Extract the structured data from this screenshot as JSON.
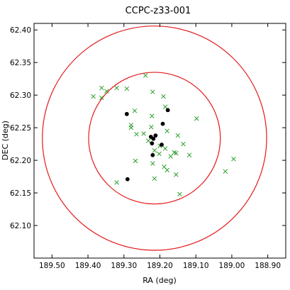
{
  "chart_data": {
    "type": "scatter",
    "title": "CCPC-z33-001",
    "xlabel": "RA (deg)",
    "ylabel": "DEC (deg)",
    "xlim": [
      189.55,
      188.85
    ],
    "ylim": [
      62.05,
      62.41
    ],
    "x_ticks": [
      "189.50",
      "189.40",
      "189.30",
      "189.20",
      "189.10",
      "189.00",
      "188.90"
    ],
    "y_ticks": [
      "62.10",
      "62.15",
      "62.20",
      "62.25",
      "62.30",
      "62.35",
      "62.40"
    ],
    "grid": false,
    "marker_colors": {
      "cross": "#2ca02c",
      "dot": "#000000",
      "circle": "#e31a1c"
    },
    "circles": [
      {
        "center": [
          189.215,
          62.234
        ],
        "radius_dec": 0.101
      },
      {
        "center": [
          189.215,
          62.234
        ],
        "radius_dec": 0.172
      }
    ],
    "series": [
      {
        "marker": "x",
        "points": [
          [
            189.385,
            62.298
          ],
          [
            189.362,
            62.311
          ],
          [
            189.348,
            62.306
          ],
          [
            189.362,
            62.296
          ],
          [
            189.32,
            62.311
          ],
          [
            189.292,
            62.31
          ],
          [
            189.24,
            62.33
          ],
          [
            189.22,
            62.305
          ],
          [
            189.19,
            62.298
          ],
          [
            189.27,
            62.276
          ],
          [
            189.28,
            62.254
          ],
          [
            189.28,
            62.25
          ],
          [
            189.265,
            62.24
          ],
          [
            189.245,
            62.241
          ],
          [
            189.224,
            62.251
          ],
          [
            189.222,
            62.268
          ],
          [
            189.185,
            62.282
          ],
          [
            189.18,
            62.245
          ],
          [
            189.2,
            62.222
          ],
          [
            189.185,
            62.218
          ],
          [
            189.17,
            62.206
          ],
          [
            189.16,
            62.212
          ],
          [
            189.155,
            62.211
          ],
          [
            189.15,
            62.238
          ],
          [
            189.135,
            62.225
          ],
          [
            189.118,
            62.208
          ],
          [
            189.098,
            62.264
          ],
          [
            189.215,
            62.215
          ],
          [
            189.202,
            62.21
          ],
          [
            189.232,
            62.23
          ],
          [
            189.268,
            62.199
          ],
          [
            189.22,
            62.195
          ],
          [
            189.188,
            62.19
          ],
          [
            189.18,
            62.185
          ],
          [
            189.155,
            62.178
          ],
          [
            189.215,
            62.172
          ],
          [
            189.32,
            62.166
          ],
          [
            189.145,
            62.148
          ],
          [
            189.018,
            62.183
          ],
          [
            188.995,
            62.202
          ]
        ]
      },
      {
        "marker": "dot",
        "points": [
          [
            189.292,
            62.271
          ],
          [
            189.178,
            62.277
          ],
          [
            189.192,
            62.256
          ],
          [
            189.212,
            62.238
          ],
          [
            189.225,
            62.236
          ],
          [
            189.218,
            62.233
          ],
          [
            189.222,
            62.226
          ],
          [
            189.195,
            62.224
          ],
          [
            189.22,
            62.208
          ],
          [
            189.29,
            62.171
          ]
        ]
      }
    ]
  }
}
